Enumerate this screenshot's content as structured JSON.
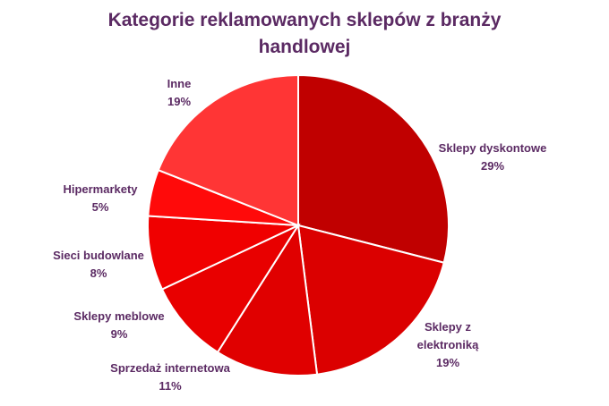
{
  "chart_data": {
    "type": "pie",
    "title_lines": [
      "Kategorie reklamowanych sklepów z branży",
      "handlowej"
    ],
    "slices": [
      {
        "label": [
          "Sklepy dyskontowe"
        ],
        "pct_label": "29%",
        "value": 29,
        "color": "#c00000"
      },
      {
        "label": [
          "Sklepy z",
          "elektroniką"
        ],
        "pct_label": "19%",
        "value": 19,
        "color": "#db0000"
      },
      {
        "label": [
          "Sprzedaż internetowa"
        ],
        "pct_label": "11%",
        "value": 11,
        "color": "#e00000"
      },
      {
        "label": [
          "Sklepy meblowe"
        ],
        "pct_label": "9%",
        "value": 9,
        "color": "#e80000"
      },
      {
        "label": [
          "Sieci budowlane"
        ],
        "pct_label": "8%",
        "value": 8,
        "color": "#f00000"
      },
      {
        "label": [
          "Hipermarkety"
        ],
        "pct_label": "5%",
        "value": 5,
        "color": "#ff0a0a"
      },
      {
        "label": [
          "Inne"
        ],
        "pct_label": "19%",
        "value": 19,
        "color": "#ff3535"
      }
    ]
  }
}
